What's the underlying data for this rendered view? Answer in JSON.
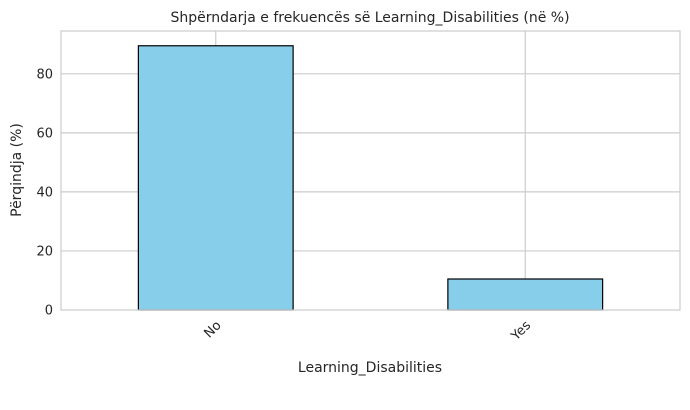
{
  "chart_data": {
    "type": "bar",
    "title": "Shpërndarja e frekuencës së Learning_Disabilities (në %)",
    "xlabel": "Learning_Disabilities",
    "ylabel": "Përqindja (%)",
    "categories": [
      "No",
      "Yes"
    ],
    "values": [
      89.5,
      10.5
    ],
    "ylim": [
      0,
      94.5
    ],
    "yticks": [
      "0",
      "20",
      "40",
      "60",
      "80"
    ],
    "grid": true,
    "bar_color": "#87ceeb",
    "edge_color": "#000000"
  }
}
